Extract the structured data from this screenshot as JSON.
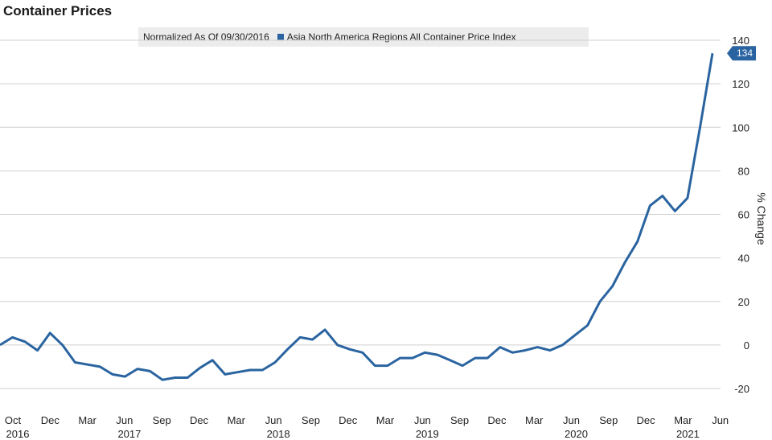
{
  "chart_data": {
    "type": "line",
    "title": "Container Prices",
    "normalization_note": "Normalized As Of 09/30/2016",
    "ylabel": "% Change",
    "xlabel": "",
    "ylim": [
      -20,
      140
    ],
    "yticks": [
      -20,
      0,
      20,
      40,
      60,
      80,
      100,
      120,
      140
    ],
    "grid": true,
    "legend_position": "top",
    "line_color": "#2a64a0",
    "months": [
      "Oct",
      "Dec",
      "Mar",
      "Jun",
      "Sep",
      "Dec",
      "Mar",
      "Jun",
      "Sep",
      "Dec",
      "Mar",
      "Jun",
      "Sep",
      "Dec",
      "Mar",
      "Jun",
      "Sep",
      "Dec",
      "Mar",
      "Jun"
    ],
    "years": [
      {
        "label": "2016",
        "month_index": 0
      },
      {
        "label": "2017",
        "month_index": 3
      },
      {
        "label": "2018",
        "month_index": 7
      },
      {
        "label": "2019",
        "month_index": 11
      },
      {
        "label": "2020",
        "month_index": 15
      },
      {
        "label": "2021",
        "month_index": 18
      }
    ],
    "series": [
      {
        "name": "Asia North America Regions All Container Price Index",
        "last_value_label": "134",
        "values": [
          0,
          3.5,
          1.5,
          -2.5,
          5.5,
          0,
          -8,
          -9,
          -10,
          -13.5,
          -14.5,
          -11,
          -12,
          -16,
          -15,
          -15,
          -10.5,
          -7,
          -13.5,
          -12.5,
          -11.5,
          -11.5,
          -8,
          -2,
          3.5,
          2.5,
          7,
          0,
          -2,
          -3.5,
          -9.5,
          -9.5,
          -6,
          -6,
          -3.5,
          -4.5,
          -7,
          -9.5,
          -6,
          -6,
          -1,
          -3.5,
          -2.5,
          -1,
          -2.5,
          0,
          4.5,
          9,
          20,
          27,
          38,
          47.5,
          64,
          68.5,
          61.5,
          67.5,
          100,
          134
        ]
      }
    ]
  }
}
